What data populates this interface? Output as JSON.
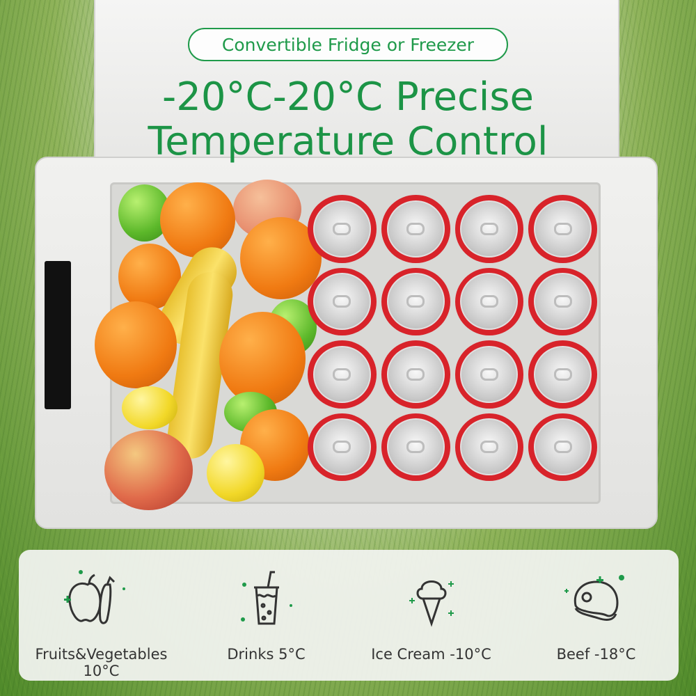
{
  "badge": "Convertible Fridge or Freezer",
  "headline": {
    "line1": "-20°C-20°C Precise",
    "line2": "Temperature Control"
  },
  "accent_color": "#1f9a4a",
  "features": [
    {
      "icon": "fruit-vegetable-icon",
      "label": "Fruits&Vegetables 10°C"
    },
    {
      "icon": "drink-icon",
      "label": "Drinks 5°C"
    },
    {
      "icon": "ice-cream-icon",
      "label": "Ice Cream -10°C"
    },
    {
      "icon": "beef-icon",
      "label": "Beef -18°C"
    }
  ]
}
